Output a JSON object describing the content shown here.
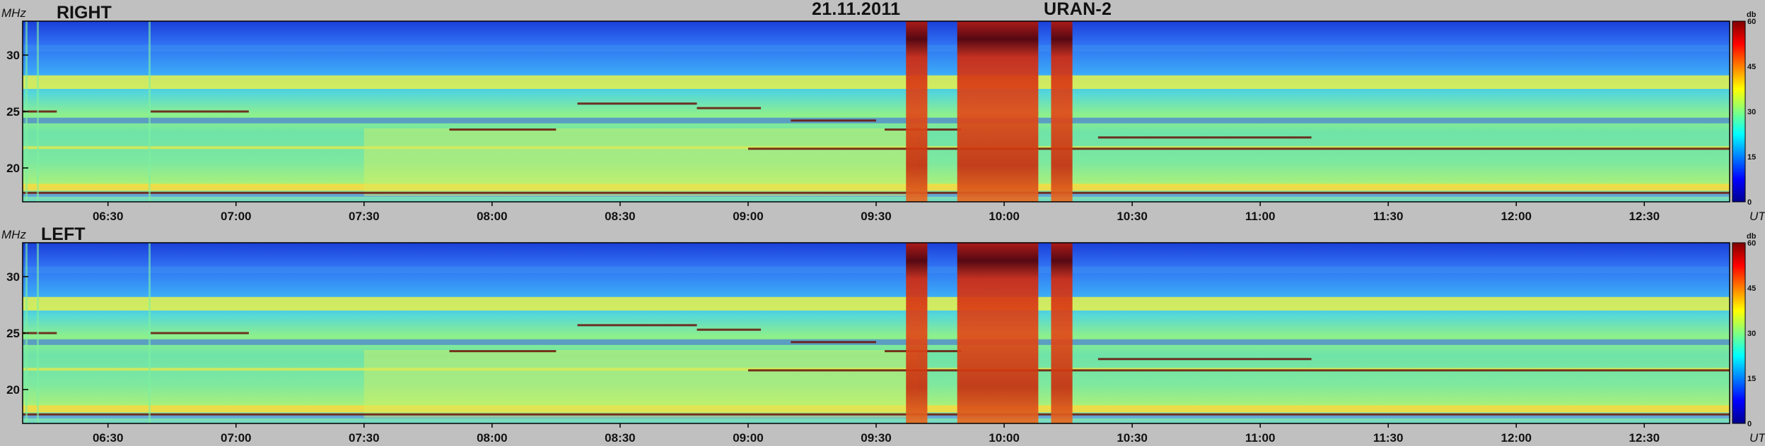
{
  "header": {
    "date": "21.11.2011",
    "instrument": "URAN-2"
  },
  "chart_data": [
    {
      "type": "heatmap",
      "title": "RIGHT",
      "ylabel": "MHz",
      "xlabel": "UT",
      "y_ticks": [
        20,
        25,
        30
      ],
      "ylim": [
        17,
        33
      ],
      "x_ticks": [
        "06:30",
        "07:00",
        "07:30",
        "08:00",
        "08:30",
        "09:00",
        "09:30",
        "10:00",
        "10:30",
        "11:00",
        "11:30",
        "12:00",
        "12:30"
      ],
      "x_range": [
        "06:10",
        "12:50"
      ],
      "colorbar": {
        "label": "db",
        "ticks": [
          0,
          15,
          30,
          45,
          60
        ],
        "range": [
          0,
          60
        ]
      },
      "burst_intervals": [
        [
          "09:37",
          "09:42"
        ],
        [
          "09:49",
          "10:08"
        ],
        [
          "10:11",
          "10:16"
        ]
      ]
    },
    {
      "type": "heatmap",
      "title": "LEFT",
      "ylabel": "MHz",
      "xlabel": "UT",
      "y_ticks": [
        20,
        25,
        30
      ],
      "ylim": [
        17,
        33
      ],
      "x_ticks": [
        "06:30",
        "07:00",
        "07:30",
        "08:00",
        "08:30",
        "09:00",
        "09:30",
        "10:00",
        "10:30",
        "11:00",
        "11:30",
        "12:00",
        "12:30"
      ],
      "x_range": [
        "06:10",
        "12:50"
      ],
      "colorbar": {
        "label": "db",
        "ticks": [
          0,
          15,
          30,
          45,
          60
        ],
        "range": [
          0,
          60
        ]
      },
      "burst_intervals": [
        [
          "09:37",
          "09:42"
        ],
        [
          "09:49",
          "10:08"
        ],
        [
          "10:11",
          "10:16"
        ]
      ]
    }
  ]
}
